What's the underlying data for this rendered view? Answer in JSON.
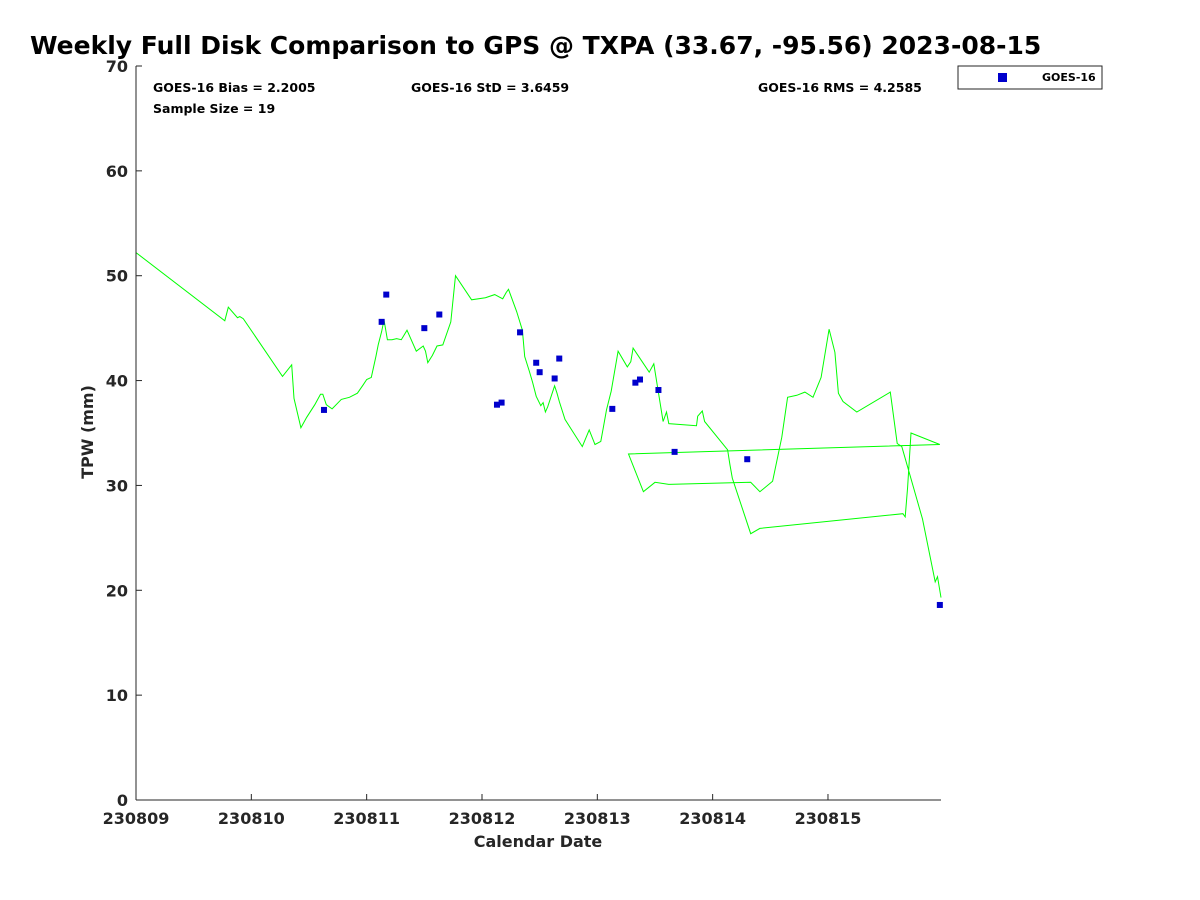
{
  "chart_data": {
    "type": "line",
    "title": "Weekly Full Disk Comparison to GPS @ TXPA (33.67, -95.56) 2023-08-15",
    "xlabel": "Calendar Date",
    "ylabel": "TPW (mm)",
    "xlim": [
      0,
      6.98
    ],
    "ylim": [
      0,
      70
    ],
    "x_tick_values": [
      0,
      1,
      2,
      3,
      4,
      5,
      6
    ],
    "x_tick_labels": [
      "230809",
      "230810",
      "230811",
      "230812",
      "230813",
      "230814",
      "230815"
    ],
    "y_ticks": [
      0,
      10,
      20,
      30,
      40,
      50,
      60,
      70
    ],
    "grid": false,
    "legend_position": "outside-top-right",
    "stats": {
      "bias": "GOES-16 Bias = 2.2005",
      "std": "GOES-16 StD = 3.6459",
      "rms": "GOES-16 RMS = 4.2585",
      "sample": "Sample Size = 19"
    },
    "series": [
      {
        "type": "line",
        "color": "#00ff00",
        "x": [
          0.0,
          0.77,
          0.8,
          0.88,
          0.9,
          0.93,
          1.27,
          1.35,
          1.37,
          1.43,
          1.48,
          1.55,
          1.6,
          1.62,
          1.65,
          1.7,
          1.78,
          1.85,
          1.92,
          1.97,
          2.0,
          2.04,
          2.08,
          2.1,
          2.13,
          2.15,
          2.18,
          2.22,
          2.26,
          2.3,
          2.35,
          2.43,
          2.49,
          2.51,
          2.53,
          2.57,
          2.61,
          2.66,
          2.73,
          2.77,
          2.91,
          3.03,
          3.11,
          3.18,
          3.21,
          3.23,
          3.3,
          3.35,
          3.37,
          3.41,
          3.44,
          3.47,
          3.51,
          3.53,
          3.55,
          3.57,
          3.63,
          3.65,
          3.67,
          3.72,
          3.87,
          3.93,
          3.98,
          4.03,
          4.05,
          4.08,
          4.12,
          4.18,
          4.26,
          4.29,
          4.31,
          4.45,
          4.49,
          4.57,
          4.6,
          4.62,
          4.86,
          4.87,
          4.91,
          4.93,
          5.13,
          5.15,
          5.17,
          5.33,
          5.41,
          6.65,
          6.67,
          6.69,
          6.72,
          6.97
        ],
        "y": [
          52.2,
          45.7,
          47.0,
          46.0,
          46.1,
          45.9,
          40.4,
          41.5,
          38.3,
          35.5,
          36.5,
          37.7,
          38.7,
          38.7,
          37.7,
          37.3,
          38.2,
          38.4,
          38.8,
          39.6,
          40.1,
          40.3,
          42.3,
          43.4,
          44.7,
          45.8,
          43.9,
          43.9,
          44.0,
          43.9,
          44.8,
          42.8,
          43.3,
          42.8,
          41.7,
          42.4,
          43.3,
          43.4,
          45.6,
          50.0,
          47.7,
          47.9,
          48.2,
          47.8,
          48.4,
          48.7,
          46.6,
          44.8,
          42.3,
          40.9,
          39.8,
          38.5,
          37.6,
          37.9,
          37.0,
          37.5,
          39.5,
          38.8,
          38.0,
          36.3,
          33.7,
          35.3,
          33.9,
          34.2,
          35.4,
          37.2,
          39.0,
          42.8,
          41.3,
          41.8,
          43.1,
          40.8,
          41.6,
          36.1,
          37.0,
          35.9,
          35.7,
          36.6,
          37.1,
          36.1,
          33.4,
          32.0,
          30.7,
          25.4,
          25.9,
          27.3,
          27.0,
          29.8,
          35.0,
          33.9
        ],
        "x2": [
          4.27,
          4.4,
          4.5,
          4.62,
          5.33,
          5.41,
          5.52,
          5.6,
          5.65,
          5.73,
          5.8,
          5.87,
          5.94,
          6.01,
          6.06,
          6.09,
          6.13,
          6.25,
          6.54,
          6.6,
          6.64,
          6.71,
          6.82,
          6.93,
          6.95,
          6.98
        ],
        "y2": [
          33.0,
          29.4,
          30.3,
          30.1,
          30.3,
          29.4,
          30.4,
          34.6,
          38.4,
          38.6,
          38.9,
          38.4,
          40.3,
          44.9,
          42.7,
          38.8,
          38.0,
          37.0,
          38.9,
          34.0,
          33.7,
          31.0,
          26.8,
          20.8,
          21.3,
          19.3
        ],
        "note_order": "first array x/y then x2/y2 form one continuous polyline"
      },
      {
        "name": "GOES-16",
        "type": "scatter",
        "color": "#0000cc",
        "marker": "square",
        "x": [
          1.63,
          2.13,
          2.17,
          2.5,
          2.63,
          3.13,
          3.17,
          3.33,
          3.47,
          3.5,
          3.63,
          3.67,
          4.13,
          4.33,
          4.37,
          4.53,
          4.67,
          5.3,
          6.97
        ],
        "y": [
          37.2,
          45.6,
          48.2,
          45.0,
          46.3,
          37.7,
          37.9,
          44.6,
          41.7,
          40.8,
          40.2,
          42.1,
          37.3,
          39.8,
          40.1,
          39.1,
          33.2,
          32.5,
          18.6
        ]
      }
    ]
  }
}
